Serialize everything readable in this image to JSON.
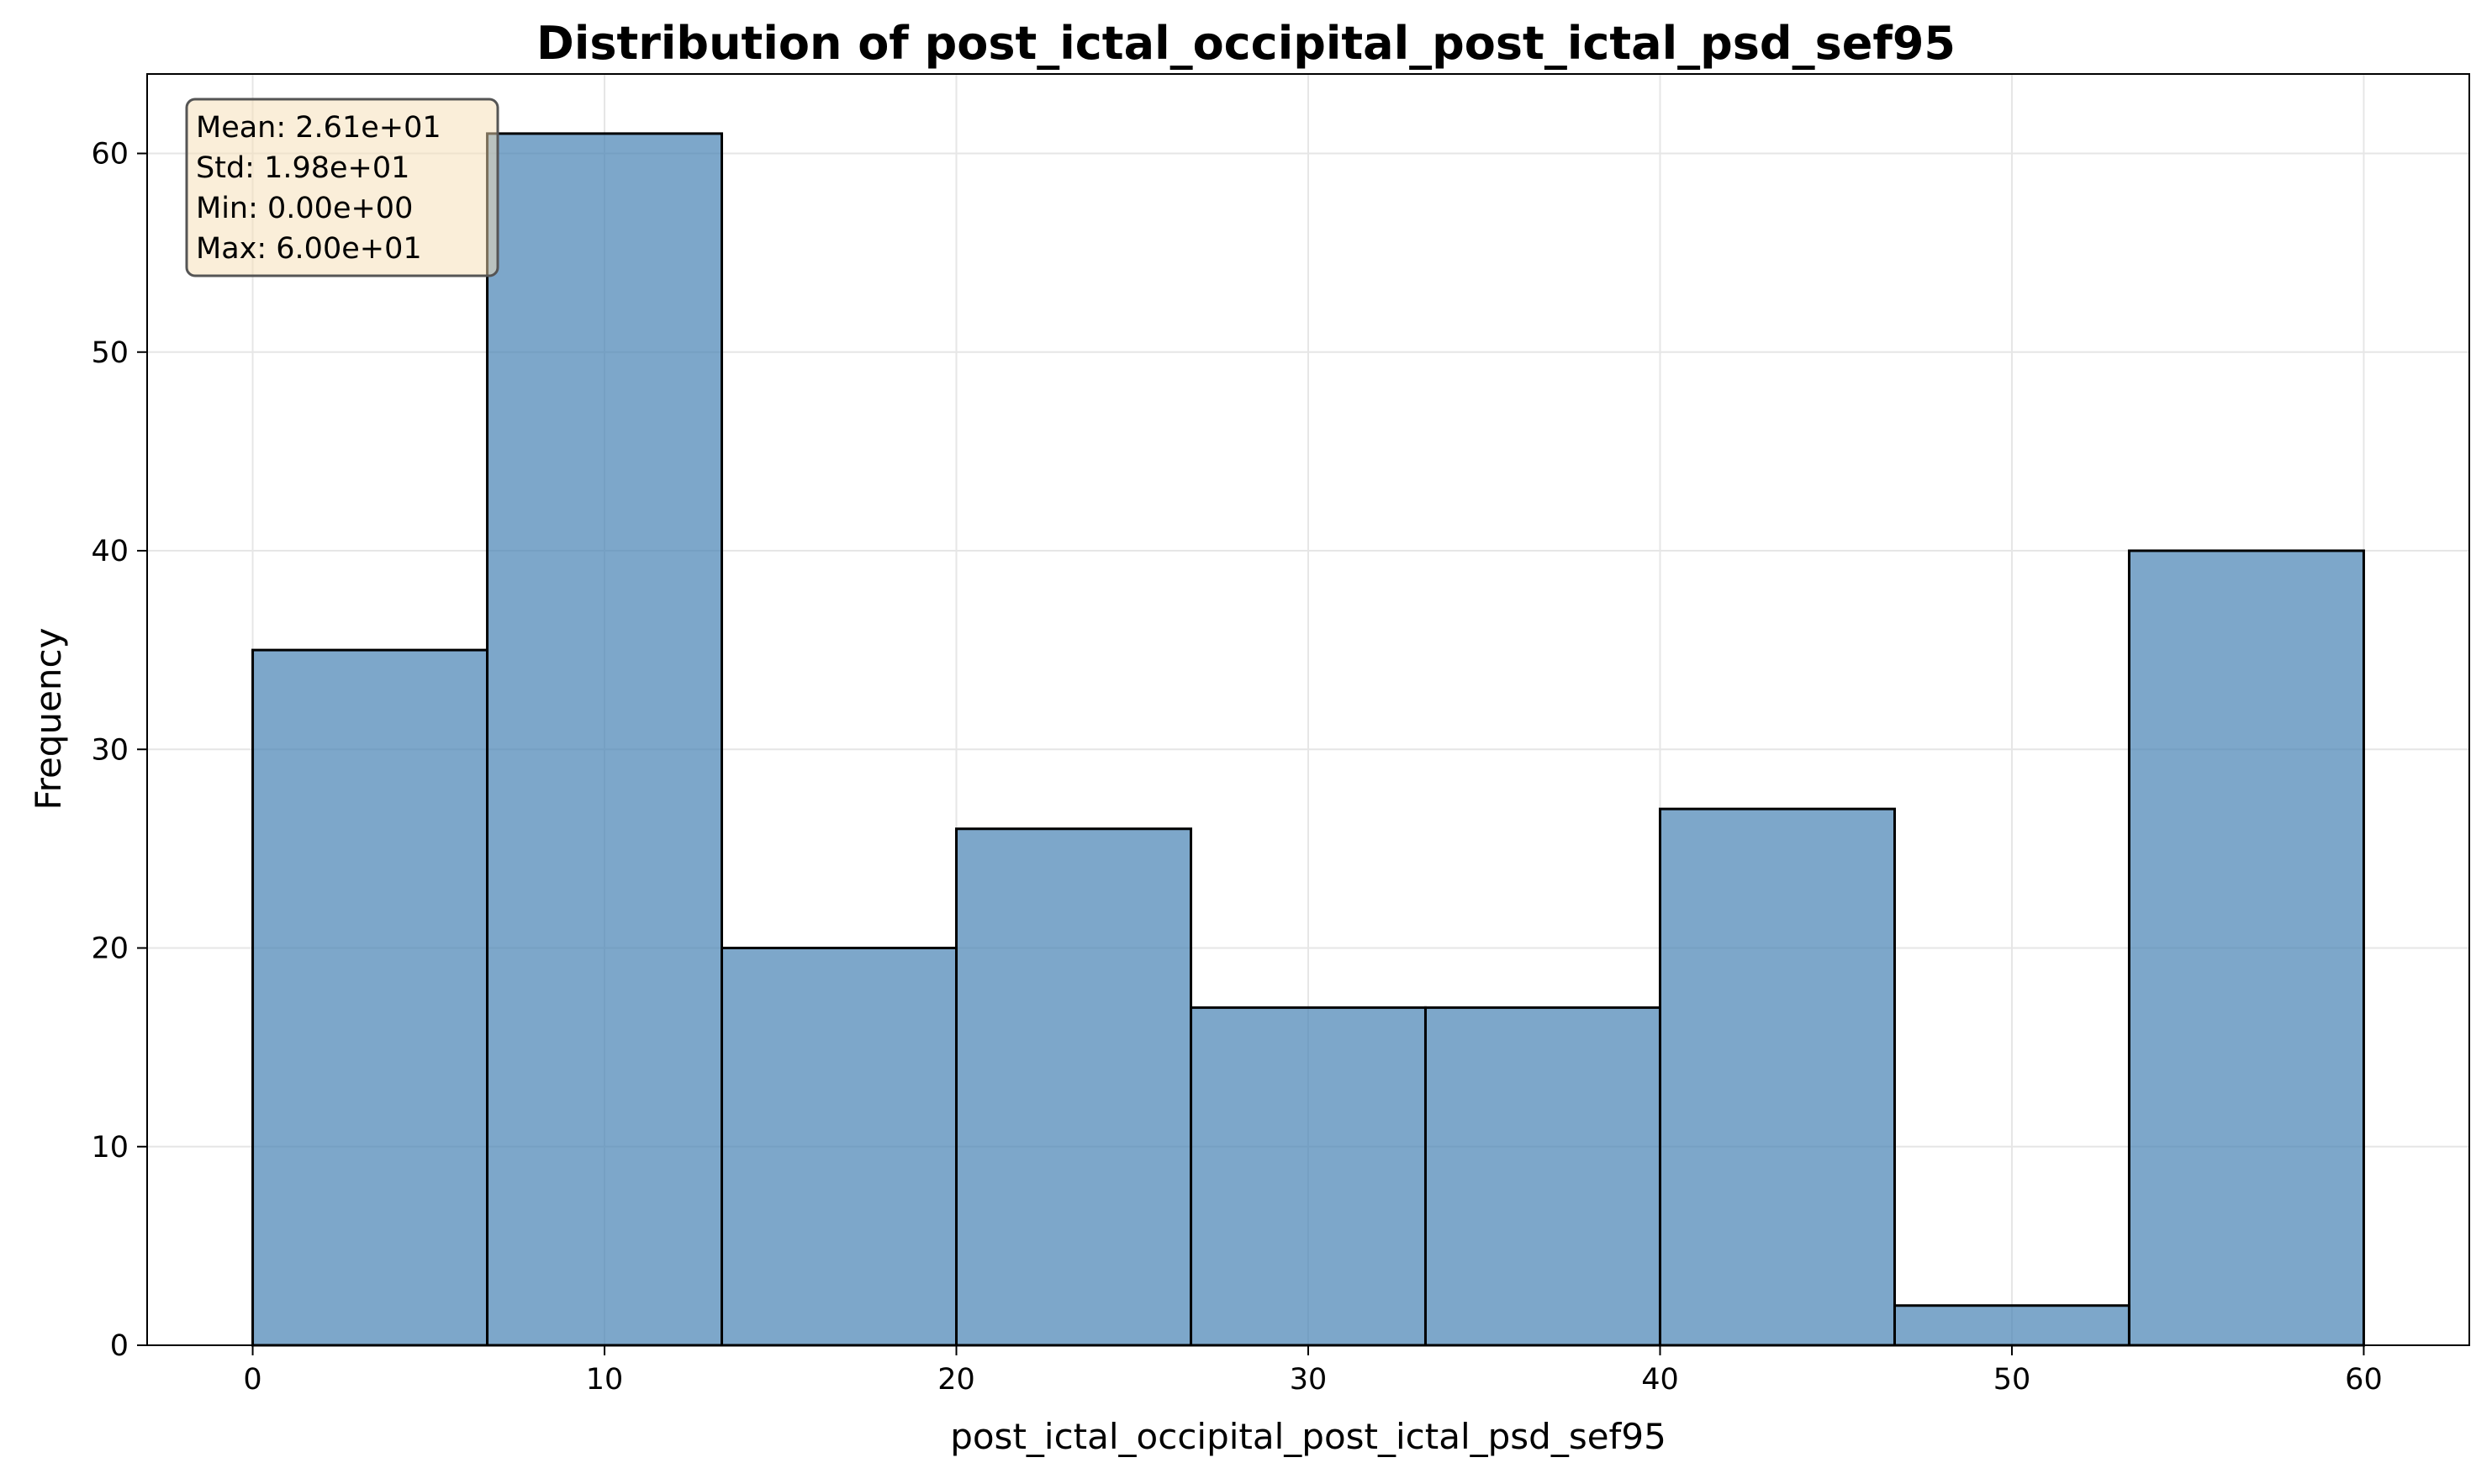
{
  "chart_data": {
    "type": "bar",
    "title": "Distribution of post_ictal_occipital_post_ictal_psd_sef95",
    "xlabel": "post_ictal_occipital_post_ictal_psd_sef95",
    "ylabel": "Frequency",
    "bin_edges": [
      0,
      6.667,
      13.333,
      20,
      26.667,
      33.333,
      40,
      46.667,
      53.333,
      60
    ],
    "values": [
      35,
      61,
      20,
      26,
      17,
      17,
      27,
      2,
      40
    ],
    "xlim": [
      -3,
      63
    ],
    "ylim": [
      0,
      64
    ],
    "xticks": [
      0,
      10,
      20,
      30,
      40,
      50,
      60
    ],
    "yticks": [
      0,
      10,
      20,
      30,
      40,
      50,
      60
    ],
    "grid": true,
    "colors": {
      "bar_fill": "#4682b4",
      "bar_fill_opacity": 0.7,
      "bar_edge": "#000000",
      "grid": "#e6e6e6",
      "stats_box_fill": "#f5deb3",
      "stats_box_edge": "#555555"
    },
    "stats_box": {
      "lines": [
        "Mean: 2.61e+01",
        "Std: 1.98e+01",
        "Min: 0.00e+00",
        "Max: 6.00e+01"
      ],
      "position": "top-left"
    }
  }
}
